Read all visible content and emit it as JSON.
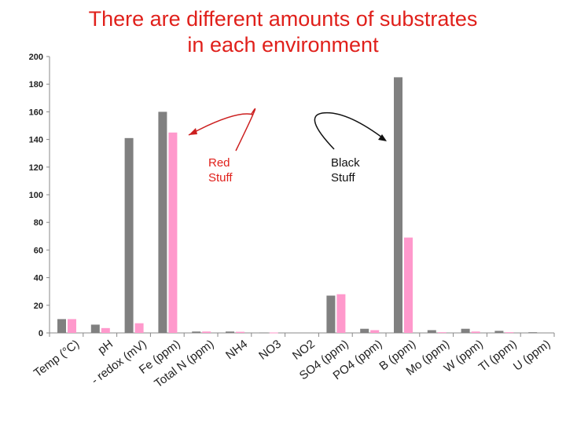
{
  "title": "There are different amounts of substrates in each environment",
  "colors": {
    "title": "#e0201b",
    "black_series": "#808080",
    "red_series": "#ff99cc",
    "arrow_red": "#cc1f1f",
    "arrow_black": "#111111"
  },
  "annotations": [
    {
      "id": "red",
      "lines": [
        "Red",
        "Stuff"
      ]
    },
    {
      "id": "black",
      "lines": [
        "Black",
        "Stuff"
      ]
    }
  ],
  "chart_data": {
    "type": "bar",
    "title": "There are different amounts of substrates in each environment",
    "ylim": [
      0,
      200
    ],
    "yticks": [
      0,
      20,
      40,
      60,
      80,
      100,
      120,
      140,
      160,
      180,
      200
    ],
    "grid": false,
    "categories": [
      "Temp (°C)",
      "pH",
      "- redox (mV)",
      "Fe (ppm)",
      "Total N (ppm)",
      "NH4",
      "NO3",
      "NO2",
      "SO4 (ppm)",
      "PO4 (ppm)",
      "B (ppm)",
      "Mo (ppm)",
      "W (ppm)",
      "Tl (ppm)",
      "U (ppm)"
    ],
    "series": [
      {
        "values": [
          10,
          6,
          141,
          160,
          1,
          1,
          0.3,
          0,
          27,
          3,
          185,
          2,
          3,
          1.5,
          0.5
        ]
      },
      {
        "values": [
          10,
          3.5,
          7,
          145,
          1,
          0.8,
          0.3,
          0,
          28,
          2,
          69,
          0.5,
          1,
          0.5,
          0
        ]
      }
    ]
  }
}
